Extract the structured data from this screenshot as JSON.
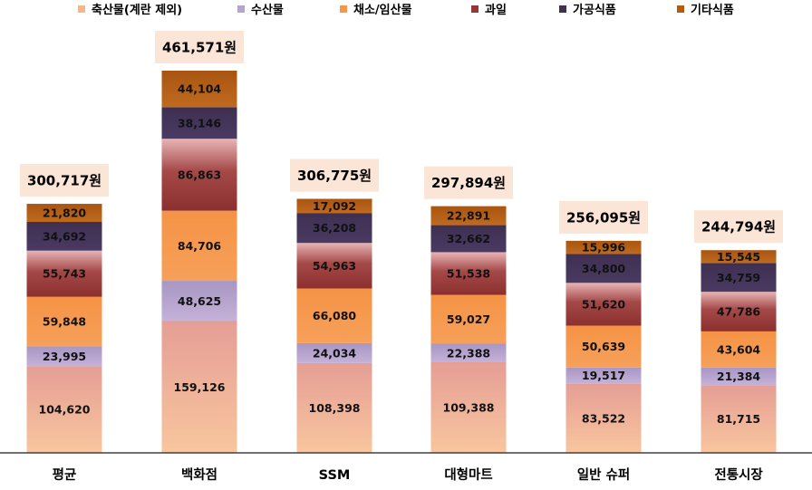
{
  "chart_data": {
    "type": "bar",
    "stacked": true,
    "title": "",
    "xlabel": "",
    "ylabel": "",
    "categories": [
      "평균",
      "백화점",
      "SSM",
      "대형마트",
      "일반 슈퍼",
      "전통시장"
    ],
    "series": [
      {
        "name": "축산물(계란 제외)",
        "color": "#F3B78D",
        "values": [
          104620,
          159126,
          108398,
          109388,
          83522,
          81715
        ]
      },
      {
        "name": "수산물",
        "color": "#B7A4CD",
        "values": [
          23995,
          48625,
          24034,
          22388,
          19517,
          21384
        ]
      },
      {
        "name": "채소/임산물",
        "color": "#F79646",
        "values": [
          59848,
          84706,
          66080,
          59027,
          50639,
          43604
        ]
      },
      {
        "name": "과일",
        "color": "#963636",
        "values": [
          55743,
          86863,
          54963,
          51538,
          51620,
          47786
        ]
      },
      {
        "name": "가공식품",
        "color": "#403152",
        "values": [
          34692,
          38146,
          36208,
          32662,
          34800,
          34759
        ]
      },
      {
        "name": "기타식품",
        "color": "#B65A0F",
        "values": [
          21820,
          44104,
          17092,
          22891,
          15996,
          15545
        ]
      }
    ],
    "segment_labels": [
      [
        "104,620",
        "23,995",
        "59,848",
        "55,743",
        "34,692",
        "21,820"
      ],
      [
        "159,126",
        "48,625",
        "84,706",
        "86,863",
        "38,146",
        "44,104"
      ],
      [
        "108,398",
        "24,034",
        "66,080",
        "54,963",
        "36,208",
        "17,092"
      ],
      [
        "109,388",
        "22,388",
        "59,027",
        "51,538",
        "32,662",
        "22,891"
      ],
      [
        "83,522",
        "19,517",
        "50,639",
        "51,620",
        "34,800",
        "15,996"
      ],
      [
        "81,715",
        "21,384",
        "43,604",
        "47,786",
        "34,759",
        "15,545"
      ]
    ],
    "totals": [
      300717,
      461571,
      306775,
      297894,
      256095,
      244794
    ],
    "total_labels": [
      "300,717원",
      "461,571원",
      "306,775원",
      "297,894원",
      "256,095원",
      "244,794원"
    ],
    "legend_position": "top",
    "total_label_background": "#FBE5D6",
    "ylim": [
      0,
      461571
    ]
  }
}
